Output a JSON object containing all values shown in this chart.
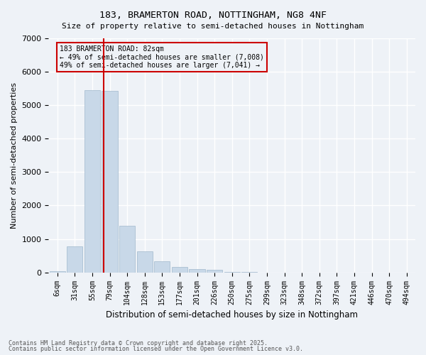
{
  "title1": "183, BRAMERTON ROAD, NOTTINGHAM, NG8 4NF",
  "title2": "Size of property relative to semi-detached houses in Nottingham",
  "xlabel": "Distribution of semi-detached houses by size in Nottingham",
  "ylabel": "Number of semi-detached properties",
  "bar_color": "#c8d8e8",
  "bar_edge_color": "#a0b8cc",
  "annotation_box_color": "#cc0000",
  "vline_color": "#cc0000",
  "background_color": "#eef2f7",
  "grid_color": "#ffffff",
  "bins": [
    "6sqm",
    "31sqm",
    "55sqm",
    "79sqm",
    "104sqm",
    "128sqm",
    "153sqm",
    "177sqm",
    "201sqm",
    "226sqm",
    "250sqm",
    "275sqm",
    "299sqm",
    "323sqm",
    "348sqm",
    "372sqm",
    "397sqm",
    "421sqm",
    "446sqm",
    "470sqm",
    "494sqm"
  ],
  "values": [
    30,
    780,
    5450,
    5420,
    1400,
    620,
    340,
    170,
    105,
    70,
    10,
    5,
    0,
    0,
    0,
    0,
    0,
    0,
    0,
    0,
    0
  ],
  "annotation_title": "183 BRAMERTON ROAD: 82sqm",
  "annotation_line1": "← 49% of semi-detached houses are smaller (7,008)",
  "annotation_line2": "49% of semi-detached houses are larger (7,041) →",
  "footer1": "Contains HM Land Registry data © Crown copyright and database right 2025.",
  "footer2": "Contains public sector information licensed under the Open Government Licence v3.0.",
  "ylim": [
    0,
    7000
  ],
  "yticks": [
    0,
    1000,
    2000,
    3000,
    4000,
    5000,
    6000,
    7000
  ],
  "vline_x": 2.65
}
